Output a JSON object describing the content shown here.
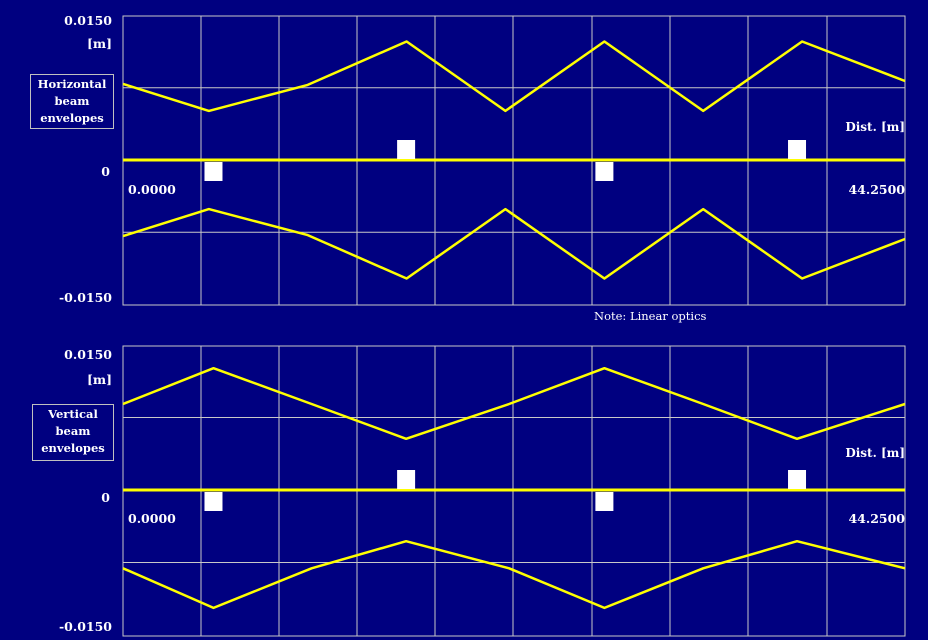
{
  "chart_data": [
    {
      "type": "line",
      "title": "",
      "panel_label": "Horizontal\nbeam\nenvelopes",
      "ylabel": "[m]",
      "xlabel": "Dist. [m]",
      "y_top_label": "0.0150",
      "y_zero_label": "0",
      "y_bottom_label": "-0.0150",
      "x_start_label": "0.0000",
      "x_end_label": "44.2500",
      "note": "Note: Linear optics",
      "xlim": [
        0,
        44.25
      ],
      "ylim": [
        -0.015,
        0.015
      ],
      "grid": true,
      "series": [
        {
          "x": [
            0,
            4.86,
            10.45,
            16.05,
            21.64,
            27.24,
            32.83,
            38.43,
            44.25
          ],
          "values": [
            0.0079,
            0.0051,
            0.0078,
            0.0123,
            0.0051,
            0.0123,
            0.0051,
            0.0123,
            0.0082
          ]
        },
        {
          "x": [
            0,
            4.86,
            10.45,
            16.05,
            21.64,
            27.24,
            32.83,
            38.43,
            44.25
          ],
          "values": [
            -0.0079,
            -0.0051,
            -0.0078,
            -0.0123,
            -0.0051,
            -0.0123,
            -0.0051,
            -0.0123,
            -0.0082
          ]
        }
      ],
      "element_markers": [
        {
          "x": 5.12,
          "side": "below"
        },
        {
          "x": 16.02,
          "side": "above"
        },
        {
          "x": 27.24,
          "side": "below"
        },
        {
          "x": 38.14,
          "side": "above"
        }
      ]
    },
    {
      "type": "line",
      "title": "",
      "panel_label": "Vertical\nbeam\nenvelopes",
      "ylabel": "[m]",
      "xlabel": "Dist. [m]",
      "y_top_label": "0.0150",
      "y_zero_label": "0",
      "y_bottom_label": "-0.0150",
      "x_start_label": "0.0000",
      "x_end_label": "44.2500",
      "xlim": [
        0,
        44.25
      ],
      "ylim": [
        -0.015,
        0.015
      ],
      "grid": true,
      "series": [
        {
          "x": [
            0,
            5.12,
            10.67,
            16.02,
            21.85,
            27.24,
            32.83,
            38.14,
            44.25
          ],
          "values": [
            0.0089,
            0.0126,
            0.0089,
            0.0053,
            0.0089,
            0.0126,
            0.0089,
            0.0053,
            0.0089
          ]
        },
        {
          "x": [
            0,
            5.12,
            10.67,
            16.02,
            21.85,
            27.24,
            32.83,
            38.14,
            44.25
          ],
          "values": [
            -0.0081,
            -0.0122,
            -0.0081,
            -0.0053,
            -0.0081,
            -0.0122,
            -0.0081,
            -0.0053,
            -0.0081
          ]
        }
      ],
      "element_markers": [
        {
          "x": 5.12,
          "side": "below"
        },
        {
          "x": 16.02,
          "side": "above"
        },
        {
          "x": 27.24,
          "side": "below"
        },
        {
          "x": 38.14,
          "side": "above"
        }
      ]
    }
  ]
}
